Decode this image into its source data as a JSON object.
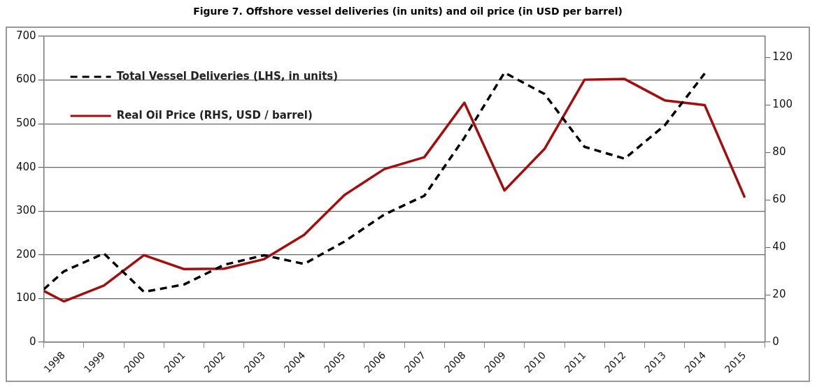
{
  "chart_data": {
    "type": "line",
    "title": "Figure 7.  Offshore vessel deliveries (in units) and oil price (in USD per barrel)",
    "x": [
      1997.5,
      1998,
      1999,
      2000,
      2001,
      2002,
      2003,
      2004,
      2005,
      2006,
      2007,
      2008,
      2009,
      2010,
      2011,
      2012,
      2013,
      2014,
      2015
    ],
    "series": [
      {
        "name": "Total Vessel Deliveries (LHS, in units)",
        "color": "#000000",
        "line_style": "dashed",
        "axis": "y",
        "values": [
          121,
          162,
          203,
          115,
          132,
          177,
          199,
          179,
          230,
          292,
          335,
          468,
          617,
          568,
          447,
          420,
          496,
          615,
          null
        ]
      },
      {
        "name": "Real Oil Price (RHS, USD / barrel)",
        "color": "#a50d0d",
        "line_style": "solid",
        "axis": "y2",
        "values": [
          21.6,
          17.2,
          23.9,
          36.7,
          30.8,
          31,
          35,
          45.3,
          62,
          73,
          78,
          101,
          64,
          81.5,
          110.7,
          111,
          102,
          100,
          61
        ]
      }
    ],
    "xlim": [
      1997.5,
      2015.5
    ],
    "xticks": [
      {
        "value": 1997.5,
        "label": null
      },
      {
        "value": 1998,
        "label": "1998"
      },
      {
        "value": 1998.5,
        "label": null
      },
      {
        "value": 1999,
        "label": "1999"
      },
      {
        "value": 1999.5,
        "label": null
      },
      {
        "value": 2000,
        "label": "2000"
      },
      {
        "value": 2000.5,
        "label": null
      },
      {
        "value": 2001,
        "label": "2001"
      },
      {
        "value": 2001.5,
        "label": null
      },
      {
        "value": 2002,
        "label": "2002"
      },
      {
        "value": 2002.5,
        "label": null
      },
      {
        "value": 2003,
        "label": "2003"
      },
      {
        "value": 2003.5,
        "label": null
      },
      {
        "value": 2004,
        "label": "2004"
      },
      {
        "value": 2004.5,
        "label": null
      },
      {
        "value": 2005,
        "label": "2005"
      },
      {
        "value": 2005.5,
        "label": null
      },
      {
        "value": 2006,
        "label": "2006"
      },
      {
        "value": 2006.5,
        "label": null
      },
      {
        "value": 2007,
        "label": "2007"
      },
      {
        "value": 2007.5,
        "label": null
      },
      {
        "value": 2008,
        "label": "2008"
      },
      {
        "value": 2008.5,
        "label": null
      },
      {
        "value": 2009,
        "label": "2009"
      },
      {
        "value": 2009.5,
        "label": null
      },
      {
        "value": 2010,
        "label": "2010"
      },
      {
        "value": 2010.5,
        "label": null
      },
      {
        "value": 2011,
        "label": "2011"
      },
      {
        "value": 2011.5,
        "label": null
      },
      {
        "value": 2012,
        "label": "2012"
      },
      {
        "value": 2012.5,
        "label": null
      },
      {
        "value": 2013,
        "label": "2013"
      },
      {
        "value": 2013.5,
        "label": null
      },
      {
        "value": 2014,
        "label": "2014"
      },
      {
        "value": 2014.5,
        "label": null
      },
      {
        "value": 2015,
        "label": "2015"
      },
      {
        "value": 2015.5,
        "label": null
      }
    ],
    "ylim": [
      0,
      700
    ],
    "yticks": [
      0,
      100,
      200,
      300,
      400,
      500,
      600,
      700
    ],
    "y2lim": [
      0,
      129
    ],
    "y2ticks": [
      0,
      20,
      40,
      60,
      80,
      100,
      120
    ],
    "grid": "y",
    "legend": "top left",
    "marker": "none"
  }
}
